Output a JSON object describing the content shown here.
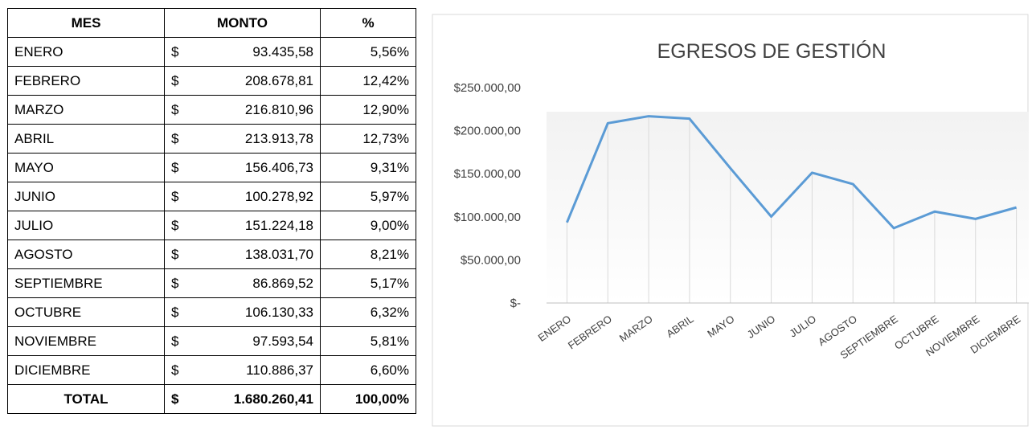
{
  "table": {
    "header": [
      "MES",
      "MONTO",
      "%"
    ],
    "rows": [
      [
        "ENERO",
        "$",
        "93.435,58",
        "5,56%"
      ],
      [
        "FEBRERO",
        "$",
        "208.678,81",
        "12,42%"
      ],
      [
        "MARZO",
        "$",
        "216.810,96",
        "12,90%"
      ],
      [
        "ABRIL",
        "$",
        "213.913,78",
        "12,73%"
      ],
      [
        "MAYO",
        "$",
        "156.406,73",
        "9,31%"
      ],
      [
        "JUNIO",
        "$",
        "100.278,92",
        "5,97%"
      ],
      [
        "JULIO",
        "$",
        "151.224,18",
        "9,00%"
      ],
      [
        "AGOSTO",
        "$",
        "138.031,70",
        "8,21%"
      ],
      [
        "SEPTIEMBRE",
        "$",
        "86.869,52",
        "5,17%"
      ],
      [
        "OCTUBRE",
        "$",
        "106.130,33",
        "6,32%"
      ],
      [
        "NOVIEMBRE",
        "$",
        "97.593,54",
        "5,81%"
      ],
      [
        "DICIEMBRE",
        "$",
        "110.886,37",
        "6,60%"
      ]
    ],
    "total": [
      "TOTAL",
      "$",
      "1.680.260,41",
      "100,00%"
    ]
  },
  "chart_data": {
    "type": "line",
    "title": "EGRESOS DE GESTIÓN",
    "categories": [
      "ENERO",
      "FEBRERO",
      "MARZO",
      "ABRIL",
      "MAYO",
      "JUNIO",
      "JULIO",
      "AGOSTO",
      "SEPTIEMBRE",
      "OCTUBRE",
      "NOVIEMBRE",
      "DICIEMBRE"
    ],
    "values": [
      93435.58,
      208678.81,
      216810.96,
      213913.78,
      156406.73,
      100278.92,
      151224.18,
      138031.7,
      86869.52,
      106130.33,
      97593.54,
      110886.37
    ],
    "color": "#5b9bd5",
    "ylim": [
      0,
      250000
    ],
    "yticks": [
      {
        "value": 0,
        "label": "$-"
      },
      {
        "value": 50000,
        "label": "$50.000,00"
      },
      {
        "value": 100000,
        "label": "$100.000,00"
      },
      {
        "value": 150000,
        "label": "$150.000,00"
      },
      {
        "value": 200000,
        "label": "$200.000,00"
      },
      {
        "value": 250000,
        "label": "$250.000,00"
      }
    ]
  }
}
